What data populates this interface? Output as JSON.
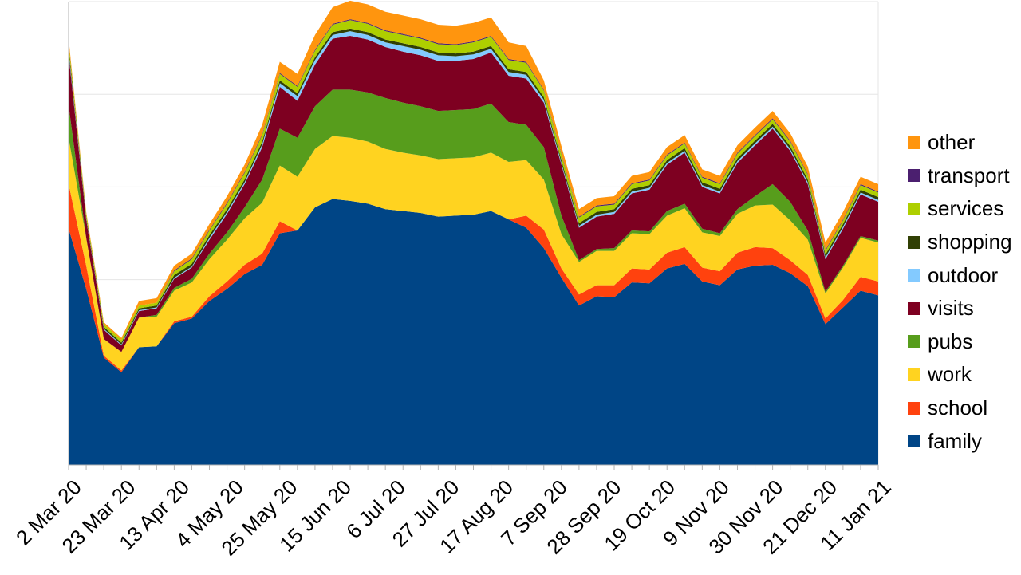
{
  "chart_data": {
    "type": "area",
    "stacked": true,
    "x_labels": [
      "2 Mar 20",
      "23 Mar 20",
      "13 Apr 20",
      "4 May 20",
      "25 May 20",
      "15 Jun 20",
      "6 Jul 20",
      "27 Jul 20",
      "17 Aug 20",
      "7 Sep 20",
      "28 Sep 20",
      "19 Oct 20",
      "9 Nov 20",
      "30 Nov 20",
      "21 Dec 20",
      "11 Jan 21"
    ],
    "ylim": [
      0,
      5
    ],
    "y_ticks_shown": false,
    "grid": "horizontal",
    "legend_position": "right",
    "series": [
      {
        "name": "family",
        "color": "#004586",
        "values": [
          2.55,
          1.9,
          1.16,
          1.0,
          1.27,
          1.28,
          1.53,
          1.58,
          1.77,
          1.9,
          2.06,
          2.16,
          2.5,
          2.53,
          2.78,
          2.87,
          2.85,
          2.82,
          2.76,
          2.74,
          2.72,
          2.68,
          2.69,
          2.7,
          2.74,
          2.65,
          2.56,
          2.34,
          2.02,
          1.72,
          1.82,
          1.81,
          1.97,
          1.96,
          2.12,
          2.17,
          1.98,
          1.94,
          2.11,
          2.15,
          2.16,
          2.07,
          1.93,
          1.52,
          1.7,
          1.88,
          1.83
        ]
      },
      {
        "name": "school",
        "color": "#ff420e",
        "values": [
          0.48,
          0.25,
          0.02,
          0.02,
          0.0,
          0.0,
          0.02,
          0.02,
          0.05,
          0.08,
          0.1,
          0.12,
          0.13,
          0.0,
          0.0,
          0.0,
          0.0,
          0.0,
          0.0,
          0.0,
          0.0,
          0.0,
          0.0,
          0.0,
          0.0,
          0.0,
          0.13,
          0.2,
          0.1,
          0.12,
          0.12,
          0.13,
          0.15,
          0.15,
          0.17,
          0.18,
          0.15,
          0.15,
          0.18,
          0.2,
          0.18,
          0.14,
          0.12,
          0.06,
          0.08,
          0.15,
          0.15
        ]
      },
      {
        "name": "work",
        "color": "#ffd320",
        "values": [
          0.5,
          0.3,
          0.18,
          0.2,
          0.32,
          0.32,
          0.33,
          0.37,
          0.4,
          0.45,
          0.5,
          0.55,
          0.6,
          0.58,
          0.63,
          0.68,
          0.68,
          0.67,
          0.65,
          0.63,
          0.62,
          0.62,
          0.62,
          0.62,
          0.63,
          0.62,
          0.6,
          0.54,
          0.37,
          0.35,
          0.37,
          0.37,
          0.38,
          0.38,
          0.4,
          0.42,
          0.38,
          0.38,
          0.42,
          0.45,
          0.47,
          0.43,
          0.38,
          0.27,
          0.35,
          0.42,
          0.42
        ]
      },
      {
        "name": "pubs",
        "color": "#579d1c",
        "values": [
          0.35,
          0.0,
          0.0,
          0.0,
          0.0,
          0.02,
          0.03,
          0.04,
          0.06,
          0.08,
          0.12,
          0.25,
          0.4,
          0.42,
          0.46,
          0.5,
          0.52,
          0.53,
          0.55,
          0.54,
          0.53,
          0.52,
          0.52,
          0.52,
          0.53,
          0.43,
          0.38,
          0.35,
          0.2,
          0.02,
          0.02,
          0.03,
          0.03,
          0.03,
          0.05,
          0.05,
          0.04,
          0.03,
          0.05,
          0.1,
          0.22,
          0.2,
          0.1,
          0.02,
          0.02,
          0.02,
          0.02
        ]
      },
      {
        "name": "visits",
        "color": "#7e0021",
        "values": [
          0.55,
          0.2,
          0.1,
          0.07,
          0.07,
          0.07,
          0.1,
          0.12,
          0.15,
          0.2,
          0.25,
          0.35,
          0.45,
          0.4,
          0.45,
          0.55,
          0.58,
          0.57,
          0.55,
          0.55,
          0.55,
          0.54,
          0.53,
          0.54,
          0.55,
          0.5,
          0.5,
          0.48,
          0.55,
          0.35,
          0.35,
          0.37,
          0.4,
          0.45,
          0.5,
          0.55,
          0.45,
          0.43,
          0.5,
          0.55,
          0.6,
          0.55,
          0.5,
          0.35,
          0.4,
          0.45,
          0.42
        ]
      },
      {
        "name": "outdoor",
        "color": "#83caff",
        "values": [
          0.03,
          0.01,
          0.01,
          0.01,
          0.01,
          0.01,
          0.01,
          0.01,
          0.02,
          0.02,
          0.02,
          0.03,
          0.04,
          0.05,
          0.05,
          0.04,
          0.05,
          0.05,
          0.05,
          0.06,
          0.06,
          0.06,
          0.05,
          0.05,
          0.04,
          0.04,
          0.04,
          0.03,
          0.02,
          0.02,
          0.02,
          0.02,
          0.02,
          0.02,
          0.02,
          0.02,
          0.02,
          0.02,
          0.02,
          0.02,
          0.02,
          0.02,
          0.02,
          0.02,
          0.02,
          0.02,
          0.02
        ]
      },
      {
        "name": "shopping",
        "color": "#314004",
        "values": [
          0.04,
          0.02,
          0.02,
          0.02,
          0.02,
          0.02,
          0.03,
          0.03,
          0.03,
          0.03,
          0.03,
          0.03,
          0.03,
          0.03,
          0.03,
          0.03,
          0.03,
          0.03,
          0.03,
          0.03,
          0.03,
          0.03,
          0.03,
          0.03,
          0.03,
          0.03,
          0.03,
          0.03,
          0.03,
          0.03,
          0.03,
          0.03,
          0.03,
          0.03,
          0.03,
          0.03,
          0.03,
          0.03,
          0.03,
          0.03,
          0.03,
          0.03,
          0.03,
          0.03,
          0.03,
          0.03,
          0.03
        ]
      },
      {
        "name": "services",
        "color": "#aecf00",
        "values": [
          0.05,
          0.03,
          0.03,
          0.03,
          0.03,
          0.03,
          0.04,
          0.05,
          0.05,
          0.06,
          0.07,
          0.07,
          0.07,
          0.07,
          0.07,
          0.08,
          0.09,
          0.09,
          0.09,
          0.09,
          0.09,
          0.09,
          0.09,
          0.1,
          0.1,
          0.1,
          0.1,
          0.07,
          0.06,
          0.06,
          0.06,
          0.05,
          0.05,
          0.05,
          0.05,
          0.05,
          0.05,
          0.05,
          0.05,
          0.05,
          0.05,
          0.05,
          0.05,
          0.04,
          0.04,
          0.05,
          0.05
        ]
      },
      {
        "name": "transport",
        "color": "#4b1f6f",
        "values": [
          0.01,
          0.0,
          0.0,
          0.0,
          0.0,
          0.0,
          0.01,
          0.01,
          0.01,
          0.01,
          0.01,
          0.01,
          0.01,
          0.01,
          0.01,
          0.01,
          0.01,
          0.01,
          0.01,
          0.01,
          0.01,
          0.01,
          0.01,
          0.01,
          0.01,
          0.01,
          0.01,
          0.01,
          0.01,
          0.01,
          0.01,
          0.01,
          0.01,
          0.01,
          0.01,
          0.01,
          0.01,
          0.01,
          0.01,
          0.01,
          0.01,
          0.01,
          0.01,
          0.01,
          0.01,
          0.01,
          0.01
        ]
      },
      {
        "name": "other",
        "color": "#ff950e",
        "values": [
          0.04,
          0.02,
          0.02,
          0.02,
          0.05,
          0.05,
          0.05,
          0.05,
          0.06,
          0.07,
          0.08,
          0.1,
          0.12,
          0.13,
          0.16,
          0.18,
          0.2,
          0.2,
          0.2,
          0.2,
          0.2,
          0.2,
          0.2,
          0.2,
          0.2,
          0.18,
          0.17,
          0.1,
          0.08,
          0.08,
          0.08,
          0.08,
          0.08,
          0.08,
          0.08,
          0.08,
          0.08,
          0.08,
          0.08,
          0.08,
          0.08,
          0.08,
          0.08,
          0.08,
          0.08,
          0.08,
          0.08
        ]
      }
    ]
  }
}
